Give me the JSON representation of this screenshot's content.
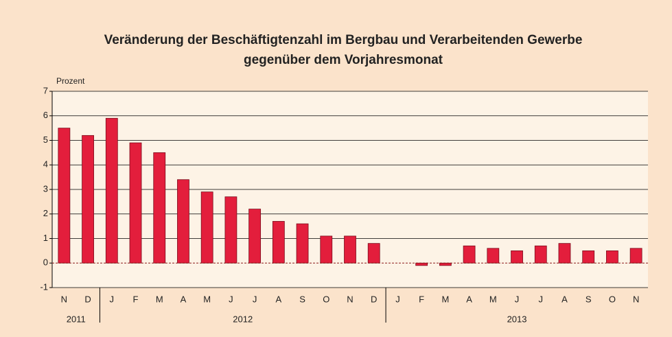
{
  "chart_data": {
    "type": "bar",
    "title": [
      "Veränderung der Beschäftigtenzahl im Bergbau und Verarbeitenden Gewerbe",
      "gegenüber dem Vorjahresmonat"
    ],
    "y_label": "Prozent",
    "groups": [
      {
        "name": "2011",
        "categories": [
          "N",
          "D"
        ]
      },
      {
        "name": "2012",
        "categories": [
          "J",
          "F",
          "M",
          "A",
          "M",
          "J",
          "J",
          "A",
          "S",
          "O",
          "N",
          "D"
        ]
      },
      {
        "name": "2013",
        "categories": [
          "J",
          "F",
          "M",
          "A",
          "M",
          "J",
          "J",
          "A",
          "S",
          "O",
          "N"
        ]
      }
    ],
    "values": [
      5.5,
      5.2,
      5.9,
      4.9,
      4.5,
      3.4,
      2.9,
      2.7,
      2.2,
      1.7,
      1.6,
      1.1,
      1.1,
      0.8,
      0.0,
      -0.1,
      -0.1,
      0.7,
      0.6,
      0.5,
      0.7,
      0.8,
      0.5,
      0.5,
      0.6
    ],
    "color": "#e31e3c",
    "ylim": [
      -1,
      7
    ],
    "yticks": [
      -1,
      0,
      1,
      2,
      3,
      4,
      5,
      6,
      7
    ],
    "grid": true
  }
}
